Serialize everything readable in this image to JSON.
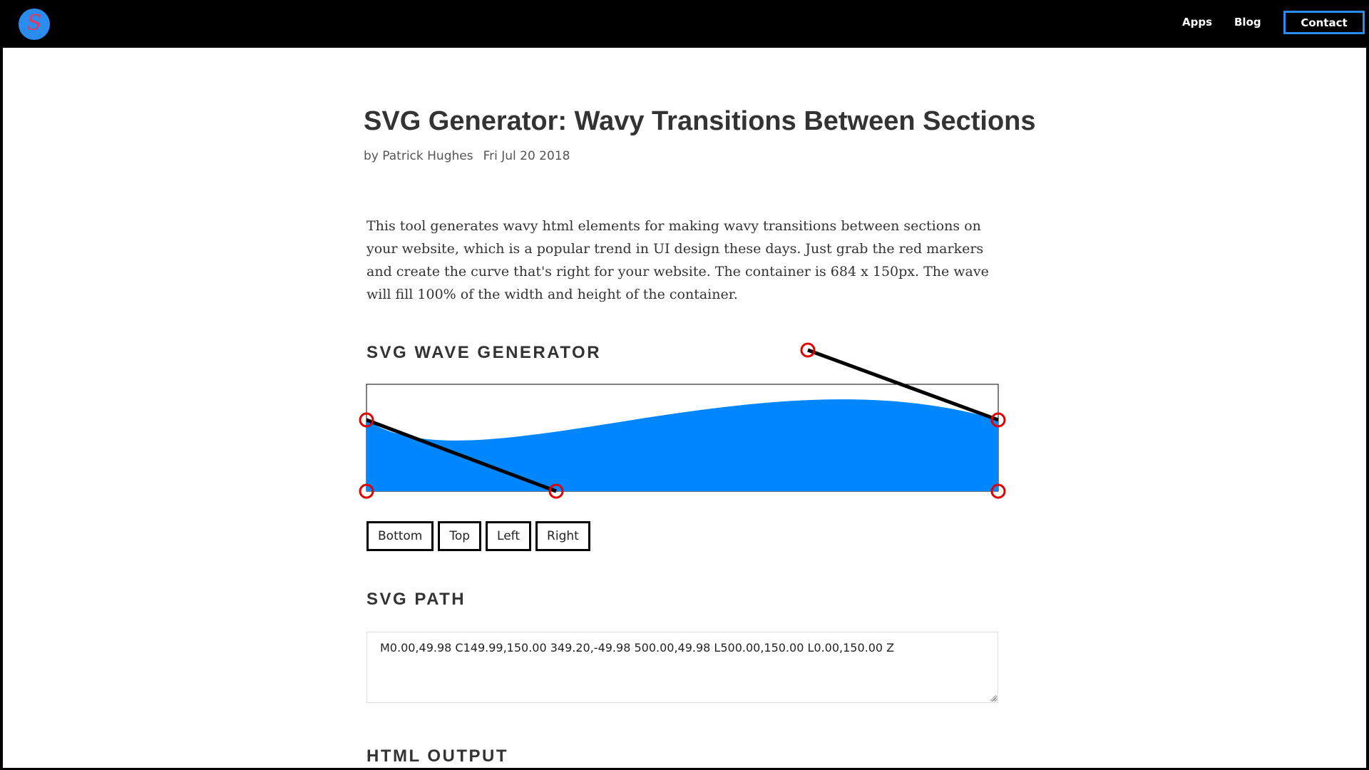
{
  "nav": {
    "logo_glyph": "S",
    "links": [
      {
        "label": "Apps"
      },
      {
        "label": "Blog"
      }
    ],
    "contact_label": "Contact",
    "accent_color": "#2b8cf0"
  },
  "article": {
    "title": "SVG Generator: Wavy Transitions Between Sections",
    "author": "by Patrick Hughes",
    "date": "Fri Jul 20 2018",
    "intro": "This tool generates wavy html elements for making wavy transitions between sections on your website, which is a popular trend in UI design these days. Just grab the red markers and create the curve that's right for your website. The container is 684 x 150px. The wave will fill 100% of the width and height of the container."
  },
  "generator": {
    "heading": "SVG WAVE GENERATOR",
    "wave_color": "#0086ff",
    "handle_color": "#e00000",
    "buttons": [
      {
        "label": "Bottom"
      },
      {
        "label": "Top"
      },
      {
        "label": "Left"
      },
      {
        "label": "Right"
      }
    ]
  },
  "path_section": {
    "heading": "SVG PATH",
    "value": "M0.00,49.98 C149.99,150.00 349.20,-49.98 500.00,49.98 L500.00,150.00 L0.00,150.00 Z"
  },
  "html_section": {
    "heading": "HTML OUTPUT"
  }
}
